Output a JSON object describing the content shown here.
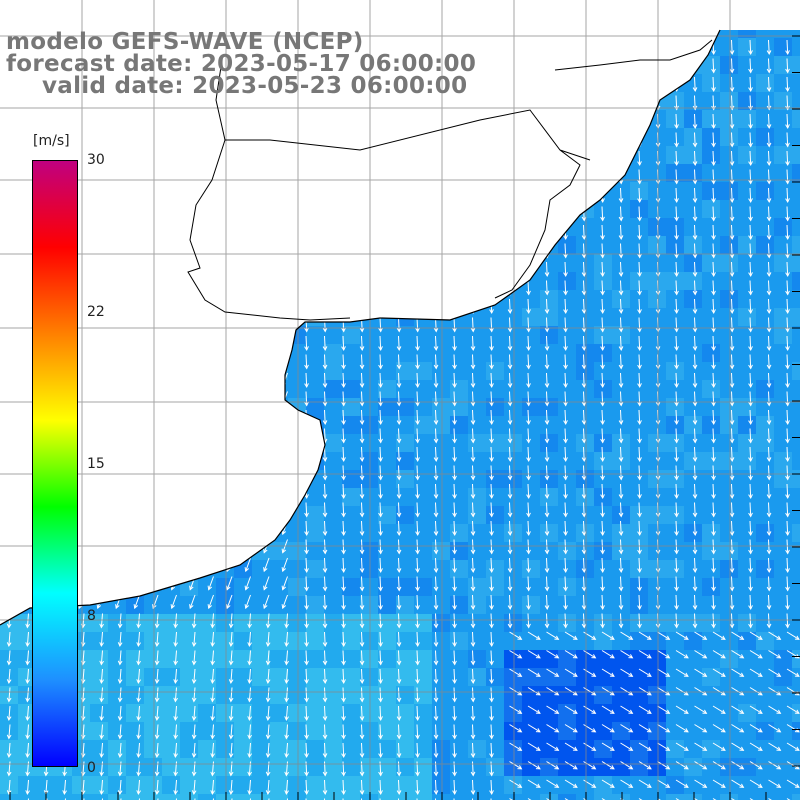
{
  "title": {
    "line1": "modelo GEFS-WAVE (NCEP)",
    "line2": "forecast date: 2023-05-17 06:00:00",
    "line3": "valid date: 2023-05-23 06:00:00"
  },
  "colorbar": {
    "unit": "[m/s]",
    "ticks": [
      "30",
      "22",
      "15",
      "8",
      "0"
    ],
    "range": [
      0,
      30
    ],
    "stops": [
      "#0000ff",
      "#1e90ff",
      "#00ffff",
      "#00ff00",
      "#ffff00",
      "#ff8000",
      "#ff0000",
      "#c00080"
    ]
  },
  "colors": {
    "land": "#ffffff",
    "coast": "#000000",
    "grid": "#888888",
    "arrows": "#ffffff",
    "ocean_typical": "#1a9aee",
    "ocean_light": "#33bbee",
    "ocean_dark": "#0055ee"
  },
  "field": {
    "wind_direction": "from north (southward flow), turning south-east in lower right"
  }
}
